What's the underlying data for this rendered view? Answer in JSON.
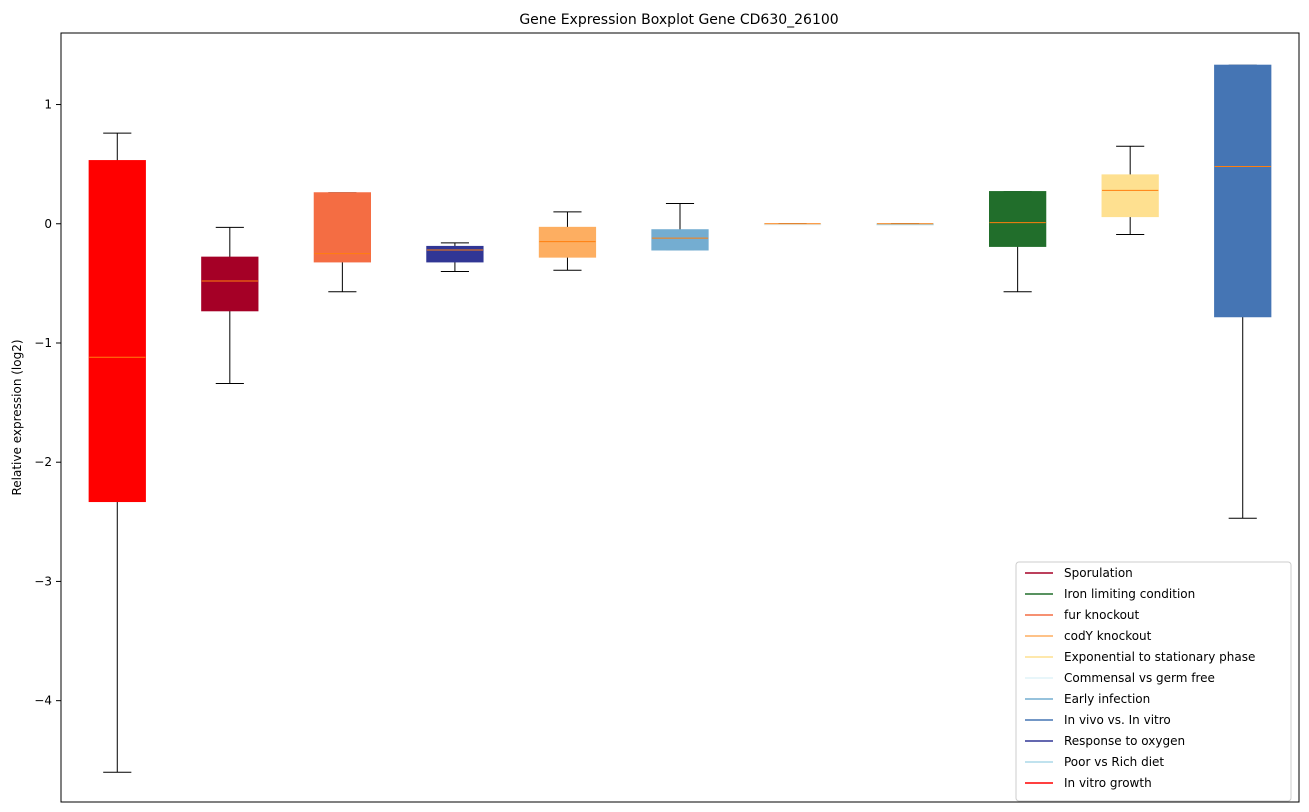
{
  "chart_data": {
    "type": "box",
    "title": "Gene Expression Boxplot Gene CD630_26100",
    "xlabel": "",
    "ylabel": "Relative expression (log2)",
    "ylim": [
      -4.85,
      1.6
    ],
    "yticks": [
      1,
      0,
      -1,
      -2,
      -3,
      -4
    ],
    "ytick_labels": [
      "1",
      "0",
      "−1",
      "−2",
      "−3",
      "−4"
    ],
    "median_color": "#ff7f0e",
    "boxes": [
      {
        "color": "#ff0000",
        "whisker_low": -4.6,
        "q1": -2.33,
        "median": -1.12,
        "q3": 0.53,
        "whisker_high": 0.76
      },
      {
        "color": "#a50026",
        "whisker_low": -1.34,
        "q1": -0.73,
        "median": -0.48,
        "q3": -0.28,
        "whisker_high": -0.03
      },
      {
        "color": "#f46d43",
        "whisker_low": -0.57,
        "q1": -0.32,
        "median": -0.25,
        "q3": 0.26,
        "whisker_high": 0.26
      },
      {
        "color": "#313695",
        "whisker_low": -0.4,
        "q1": -0.32,
        "median": -0.22,
        "q3": -0.19,
        "whisker_high": -0.16
      },
      {
        "color": "#fdae61",
        "whisker_low": -0.39,
        "q1": -0.28,
        "median": -0.15,
        "q3": -0.03,
        "whisker_high": 0.1
      },
      {
        "color": "#74add1",
        "whisker_low": -0.22,
        "q1": -0.22,
        "median": -0.12,
        "q3": -0.05,
        "whisker_high": 0.17
      },
      {
        "color": "#e0f3f8",
        "whisker_low": 0.0,
        "q1": 0.0,
        "median": 0.0,
        "q3": 0.0,
        "whisker_high": 0.0
      },
      {
        "color": "#abd9e9",
        "whisker_low": 0.0,
        "q1": 0.0,
        "median": 0.0,
        "q3": 0.0,
        "whisker_high": 0.0
      },
      {
        "color": "#216e2b",
        "whisker_low": -0.57,
        "q1": -0.19,
        "median": 0.01,
        "q3": 0.27,
        "whisker_high": 0.27
      },
      {
        "color": "#fee090",
        "whisker_low": -0.09,
        "q1": 0.06,
        "median": 0.28,
        "q3": 0.41,
        "whisker_high": 0.65
      },
      {
        "color": "#4575b4",
        "whisker_low": -2.47,
        "q1": -0.78,
        "median": 0.48,
        "q3": 1.33,
        "whisker_high": 1.33
      }
    ],
    "legend": {
      "placement": "lower right",
      "entries": [
        {
          "label": "Sporulation",
          "color": "#a50026"
        },
        {
          "label": "Iron limiting condition",
          "color": "#216e2b"
        },
        {
          "label": "fur knockout",
          "color": "#f46d43"
        },
        {
          "label": "codY knockout",
          "color": "#fdae61"
        },
        {
          "label": "Exponential to stationary phase",
          "color": "#fee090"
        },
        {
          "label": "Commensal vs germ free",
          "color": "#e0f3f8"
        },
        {
          "label": "Early infection",
          "color": "#74add1"
        },
        {
          "label": "In vivo vs. In vitro",
          "color": "#4575b4"
        },
        {
          "label": "Response to oxygen",
          "color": "#313695"
        },
        {
          "label": "Poor vs Rich diet",
          "color": "#abd9e9"
        },
        {
          "label": "In vitro growth",
          "color": "#ff0000"
        }
      ]
    }
  }
}
